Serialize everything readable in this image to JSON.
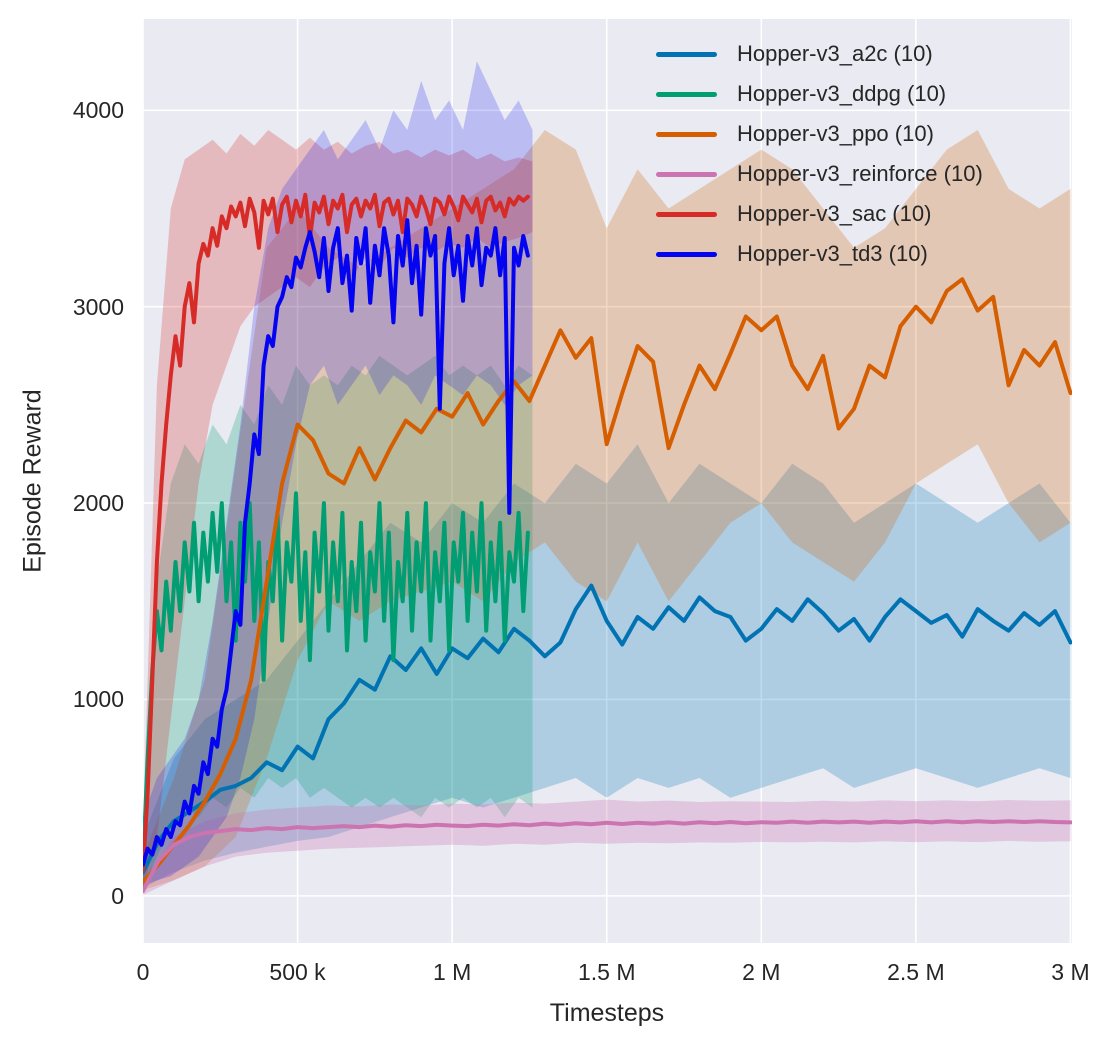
{
  "chart_data": {
    "type": "line",
    "title": "",
    "xlabel": "Timesteps",
    "ylabel": "Episode Reward",
    "grid": true,
    "legend_position": "upper right",
    "colors": {
      "plot_background": "#e9eaf2",
      "grid_line": "#ffffff",
      "text": "#262626",
      "figure_background": "#ffffff"
    },
    "xlim_ksteps": [
      0,
      3005
    ],
    "ylim": [
      -240,
      4465
    ],
    "x_ticks": [
      {
        "value_k": 0,
        "label": "0"
      },
      {
        "value_k": 500,
        "label": "500 k"
      },
      {
        "value_k": 1000,
        "label": "1 M"
      },
      {
        "value_k": 1500,
        "label": "1.5 M"
      },
      {
        "value_k": 2000,
        "label": "2 M"
      },
      {
        "value_k": 2500,
        "label": "2.5 M"
      },
      {
        "value_k": 3000,
        "label": "3 M"
      }
    ],
    "y_ticks": [
      {
        "value": 0,
        "label": "0"
      },
      {
        "value": 1000,
        "label": "1000"
      },
      {
        "value": 2000,
        "label": "2000"
      },
      {
        "value": 3000,
        "label": "3000"
      },
      {
        "value": 4000,
        "label": "4000"
      }
    ],
    "series": [
      {
        "name": "Hopper-v3_a2c (10)",
        "color": "#0173b2",
        "band_opacity": 0.25,
        "x_start_k": 0,
        "x_step_k": 50,
        "mean": [
          120,
          280,
          380,
          430,
          480,
          540,
          560,
          600,
          680,
          640,
          760,
          700,
          900,
          980,
          1100,
          1050,
          1220,
          1150,
          1260,
          1130,
          1260,
          1210,
          1310,
          1240,
          1360,
          1300,
          1220,
          1290,
          1460,
          1580,
          1400,
          1280,
          1420,
          1360,
          1470,
          1400,
          1520,
          1450,
          1420,
          1300,
          1360,
          1460,
          1400,
          1510,
          1440,
          1350,
          1410,
          1300,
          1420,
          1510,
          1450,
          1390,
          1430,
          1320,
          1460,
          1400,
          1350,
          1440,
          1380,
          1450,
          1290
        ],
        "band_x_start_k": 0,
        "band_x_step_k": 100,
        "band_lo": [
          40,
          120,
          180,
          220,
          250,
          280,
          300,
          350,
          400,
          450,
          500,
          450,
          500,
          550,
          600,
          500,
          600,
          550,
          600,
          500,
          550,
          600,
          650,
          550,
          600,
          650,
          600,
          550,
          600,
          650,
          600
        ],
        "band_hi": [
          300,
          700,
          900,
          1000,
          1100,
          1300,
          1500,
          1700,
          1900,
          1800,
          2000,
          1900,
          2100,
          2000,
          2200,
          2100,
          2300,
          2000,
          2200,
          2100,
          2000,
          2200,
          2100,
          1900,
          2000,
          2100,
          2000,
          1900,
          2000,
          2100,
          1900
        ]
      },
      {
        "name": "Hopper-v3_ddpg (10)",
        "color": "#029e73",
        "band_opacity": 0.25,
        "x_start_k": 0,
        "x_step_k": 15,
        "mean": [
          150,
          700,
          1150,
          1450,
          1250,
          1600,
          1350,
          1700,
          1450,
          1800,
          1550,
          1900,
          1500,
          1850,
          1600,
          1950,
          1650,
          2000,
          1500,
          1800,
          1300,
          1900,
          1600,
          2000,
          1400,
          1800,
          1100,
          1700,
          1500,
          1950,
          1300,
          1800,
          1600,
          2050,
          1400,
          1750,
          1200,
          1850,
          1550,
          2000,
          1350,
          1800,
          1500,
          1950,
          1250,
          1700,
          1450,
          1900,
          1300,
          1750,
          1550,
          2000,
          1400,
          1850,
          1200,
          1700,
          1500,
          1950,
          1350,
          1800,
          1550,
          2000,
          1300,
          1750,
          1500,
          1900,
          1250,
          1800,
          1600,
          1950,
          1400,
          1850,
          1550,
          2000,
          1350,
          1800,
          1500,
          1900,
          1300,
          1750,
          1600,
          1950,
          1450,
          1850
        ],
        "band_x_start_k": 0,
        "band_x_step_k": 45,
        "band_lo": [
          30,
          200,
          350,
          450,
          400,
          500,
          450,
          550,
          500,
          600,
          550,
          600,
          500,
          550,
          500,
          450,
          500,
          450,
          500,
          450,
          400,
          500,
          450,
          500,
          450,
          500,
          400,
          500,
          450
        ],
        "band_hi": [
          400,
          1600,
          2100,
          2300,
          2200,
          2400,
          2300,
          2500,
          2400,
          2600,
          2500,
          2700,
          2600,
          2650,
          2600,
          2700,
          2650,
          2750,
          2700,
          2650,
          2700,
          2750,
          2650,
          2700,
          2650,
          2700,
          2600,
          2700,
          2650
        ]
      },
      {
        "name": "Hopper-v3_ppo (10)",
        "color": "#d55e00",
        "band_opacity": 0.25,
        "x_start_k": 0,
        "x_step_k": 50,
        "mean": [
          70,
          160,
          260,
          360,
          480,
          620,
          800,
          1100,
          1600,
          2100,
          2400,
          2320,
          2150,
          2100,
          2280,
          2120,
          2280,
          2420,
          2360,
          2480,
          2440,
          2560,
          2400,
          2520,
          2620,
          2520,
          2700,
          2880,
          2740,
          2840,
          2300,
          2560,
          2800,
          2720,
          2280,
          2500,
          2700,
          2580,
          2760,
          2950,
          2880,
          2950,
          2700,
          2580,
          2750,
          2380,
          2480,
          2700,
          2640,
          2900,
          3000,
          2920,
          3080,
          3140,
          2980,
          3050,
          2600,
          2780,
          2700,
          2820,
          2560
        ],
        "band_x_start_k": 0,
        "band_x_step_k": 100,
        "band_lo": [
          30,
          80,
          150,
          300,
          700,
          1200,
          1500,
          1400,
          1500,
          1550,
          1600,
          1500,
          1700,
          1800,
          1600,
          1500,
          1800,
          1500,
          1700,
          1900,
          2000,
          1800,
          1700,
          1600,
          1800,
          2100,
          2200,
          2300,
          2000,
          1800,
          1900
        ],
        "band_hi": [
          200,
          600,
          1100,
          2200,
          3300,
          3500,
          3300,
          3200,
          3300,
          3400,
          3500,
          3600,
          3700,
          3900,
          3800,
          3400,
          3700,
          3500,
          3600,
          3700,
          3800,
          3700,
          3500,
          3300,
          3400,
          3600,
          3800,
          3900,
          3600,
          3500,
          3600
        ]
      },
      {
        "name": "Hopper-v3_reinforce (10)",
        "color": "#cc74af",
        "band_opacity": 0.3,
        "x_start_k": 0,
        "x_step_k": 50,
        "mean": [
          25,
          180,
          260,
          300,
          320,
          330,
          340,
          335,
          345,
          340,
          350,
          345,
          350,
          355,
          350,
          358,
          352,
          360,
          355,
          362,
          358,
          355,
          362,
          358,
          365,
          360,
          368,
          362,
          370,
          365,
          372,
          366,
          372,
          368,
          374,
          368,
          375,
          370,
          376,
          370,
          375,
          372,
          378,
          372,
          378,
          374,
          378,
          372,
          378,
          374,
          380,
          374,
          380,
          375,
          380,
          376,
          380,
          376,
          380,
          376,
          374
        ],
        "band_x_start_k": 0,
        "band_x_step_k": 100,
        "band_lo": [
          5,
          80,
          150,
          200,
          220,
          230,
          240,
          245,
          250,
          255,
          260,
          255,
          265,
          260,
          270,
          265,
          270,
          268,
          272,
          270,
          275,
          272,
          276,
          272,
          278,
          274,
          278,
          274,
          280,
          276,
          278
        ],
        "band_hi": [
          60,
          300,
          380,
          420,
          440,
          450,
          460,
          455,
          465,
          460,
          470,
          465,
          475,
          470,
          480,
          490,
          480,
          485,
          478,
          482,
          480,
          478,
          484,
          480,
          486,
          482,
          486,
          482,
          488,
          484,
          486
        ]
      },
      {
        "name": "Hopper-v3_sac (10)",
        "color": "#d62b27",
        "band_opacity": 0.25,
        "x_start_k": 0,
        "x_step_k": 15,
        "mean": [
          130,
          520,
          1100,
          1700,
          2100,
          2400,
          2650,
          2850,
          2700,
          3000,
          3120,
          2920,
          3220,
          3320,
          3260,
          3400,
          3310,
          3460,
          3400,
          3510,
          3460,
          3530,
          3410,
          3550,
          3480,
          3300,
          3540,
          3470,
          3550,
          3380,
          3520,
          3560,
          3430,
          3540,
          3460,
          3570,
          3350,
          3530,
          3480,
          3560,
          3420,
          3540,
          3500,
          3570,
          3380,
          3520,
          3550,
          3460,
          3540,
          3500,
          3570,
          3410,
          3530,
          3550,
          3470,
          3540,
          3380,
          3550,
          3520,
          3460,
          3560,
          3500,
          3420,
          3550,
          3530,
          3470,
          3560,
          3510,
          3440,
          3560,
          3520,
          3480,
          3550,
          3430,
          3540,
          3560,
          3490,
          3530,
          3460,
          3550,
          3520,
          3560,
          3540,
          3560
        ],
        "band_x_start_k": 0,
        "band_x_step_k": 45,
        "band_lo": [
          40,
          300,
          900,
          1500,
          2100,
          2500,
          2700,
          2900,
          3000,
          3050,
          3100,
          3150,
          3100,
          3200,
          3250,
          3150,
          3250,
          3200,
          3300,
          3250,
          3300,
          3280,
          3320,
          3300,
          3350,
          3300,
          3330,
          3350,
          3380
        ],
        "band_hi": [
          350,
          2600,
          3500,
          3750,
          3800,
          3850,
          3780,
          3880,
          3820,
          3900,
          3850,
          3800,
          3860,
          3800,
          3840,
          3780,
          3820,
          3840,
          3780,
          3800,
          3760,
          3800,
          3770,
          3800,
          3750,
          3780,
          3740,
          3760,
          3740
        ]
      },
      {
        "name": "Hopper-v3_td3 (10)",
        "color": "#0404f0",
        "band_opacity": 0.2,
        "x_start_k": 0,
        "x_step_k": 15,
        "mean": [
          160,
          240,
          210,
          300,
          260,
          340,
          300,
          380,
          360,
          480,
          420,
          560,
          520,
          680,
          620,
          800,
          760,
          950,
          1050,
          1250,
          1450,
          1380,
          1900,
          2100,
          2350,
          2250,
          2700,
          2850,
          2800,
          3000,
          3050,
          3150,
          3100,
          3250,
          3200,
          3300,
          3380,
          3280,
          3150,
          3350,
          3080,
          3300,
          3400,
          3120,
          3260,
          2980,
          3350,
          3220,
          3400,
          3020,
          3310,
          3160,
          3400,
          3260,
          2920,
          3360,
          3210,
          3440,
          3120,
          3310,
          2960,
          3400,
          3260,
          3360,
          2480,
          3220,
          3400,
          3160,
          3310,
          3030,
          3360,
          3210,
          3400,
          3110,
          3300,
          3260,
          3400,
          3160,
          3350,
          1950,
          3300,
          3210,
          3360,
          3260
        ],
        "band_x_start_k": 0,
        "band_x_step_k": 45,
        "band_lo": [
          50,
          80,
          100,
          150,
          200,
          300,
          400,
          600,
          900,
          1400,
          1900,
          2300,
          2600,
          2700,
          2500,
          2600,
          2700,
          2550,
          2650,
          2600,
          2500,
          2650,
          2600,
          2550,
          2650,
          2600,
          2500,
          2600,
          2650
        ],
        "band_hi": [
          400,
          600,
          700,
          800,
          1000,
          1400,
          1900,
          2400,
          3000,
          3400,
          3600,
          3700,
          3800,
          3900,
          3750,
          3850,
          3950,
          3800,
          4000,
          3900,
          4150,
          3950,
          4050,
          3900,
          4250,
          4100,
          3950,
          4050,
          3900
        ]
      }
    ]
  },
  "layout_text": {
    "xlabel": "Timesteps",
    "ylabel": "Episode Reward"
  }
}
